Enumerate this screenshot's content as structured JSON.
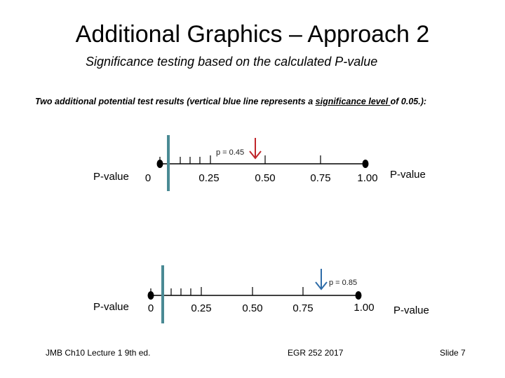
{
  "slide": {
    "title": "Additional Graphics – Approach 2",
    "subtitle": "Significance testing based on the calculated P-value",
    "description": {
      "before": "Two additional potential test results (vertical blue line represents a ",
      "underlined": "significance level ",
      "after": "of 0.05.):"
    }
  },
  "diagram1": {
    "left_label": "P-value",
    "right_label": "P-value",
    "ticks": [
      "0",
      "0.25",
      "0.50",
      "0.75",
      "1.00"
    ],
    "p_label": "p = 0.45",
    "p_value": 0.45,
    "significance_level": 0.05,
    "arrow_color": "#c0262b",
    "line_color": "#4a8a94"
  },
  "diagram2": {
    "left_label": "P-value",
    "right_label": "P-value",
    "ticks": [
      "0",
      "0.25",
      "0.50",
      "0.75",
      "1.00"
    ],
    "p_label": "p = 0.85",
    "p_value": 0.85,
    "significance_level": 0.05,
    "arrow_color": "#2e6ca8",
    "line_color": "#4a8a94"
  },
  "footer": {
    "left": "JMB Ch10 Lecture 1  9th ed.",
    "center": "EGR 252 2017",
    "right": "Slide 7"
  }
}
